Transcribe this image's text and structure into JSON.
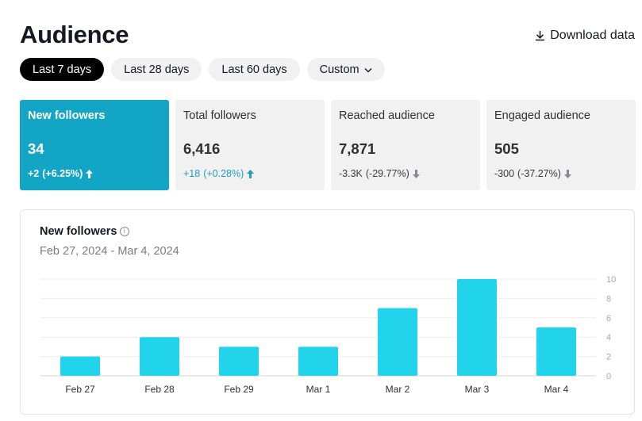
{
  "header": {
    "title": "Audience",
    "download_label": "Download data"
  },
  "ranges": [
    {
      "label": "Last 7 days",
      "active": true
    },
    {
      "label": "Last 28 days",
      "active": false
    },
    {
      "label": "Last 60 days",
      "active": false
    },
    {
      "label": "Custom",
      "active": false,
      "dropdown": true
    }
  ],
  "cards": [
    {
      "label": "New followers",
      "value": "34",
      "delta_abs": "+2",
      "delta_pct": "(+6.25%)",
      "direction": "up",
      "active": true
    },
    {
      "label": "Total followers",
      "value": "6,416",
      "delta_abs": "+18",
      "delta_pct": "(+0.28%)",
      "direction": "up",
      "active": false
    },
    {
      "label": "Reached audience",
      "value": "7,871",
      "delta_abs": "-3.3K",
      "delta_pct": "(-29.77%)",
      "direction": "down",
      "active": false
    },
    {
      "label": "Engaged audience",
      "value": "505",
      "delta_abs": "-300",
      "delta_pct": "(-37.27%)",
      "direction": "down",
      "active": false
    }
  ],
  "chart_panel": {
    "title": "New followers",
    "info_icon": "info-icon",
    "date_range": "Feb 27, 2024 - Mar 4, 2024"
  },
  "colors": {
    "accent": "#13a5c6",
    "bar": "#22d3ec",
    "up": "#1b9ec0",
    "down": "#8a8b91"
  },
  "chart_data": {
    "type": "bar",
    "categories": [
      "Feb 27",
      "Feb 28",
      "Feb 29",
      "Mar 1",
      "Mar 2",
      "Mar 3",
      "Mar 4"
    ],
    "values": [
      2,
      4,
      3,
      3,
      7,
      10,
      5
    ],
    "yticks": [
      "0",
      "2",
      "4",
      "6",
      "8",
      "10"
    ],
    "ylim": [
      0,
      10
    ],
    "grid": true,
    "title": "New followers",
    "xlabel": "",
    "ylabel": ""
  }
}
